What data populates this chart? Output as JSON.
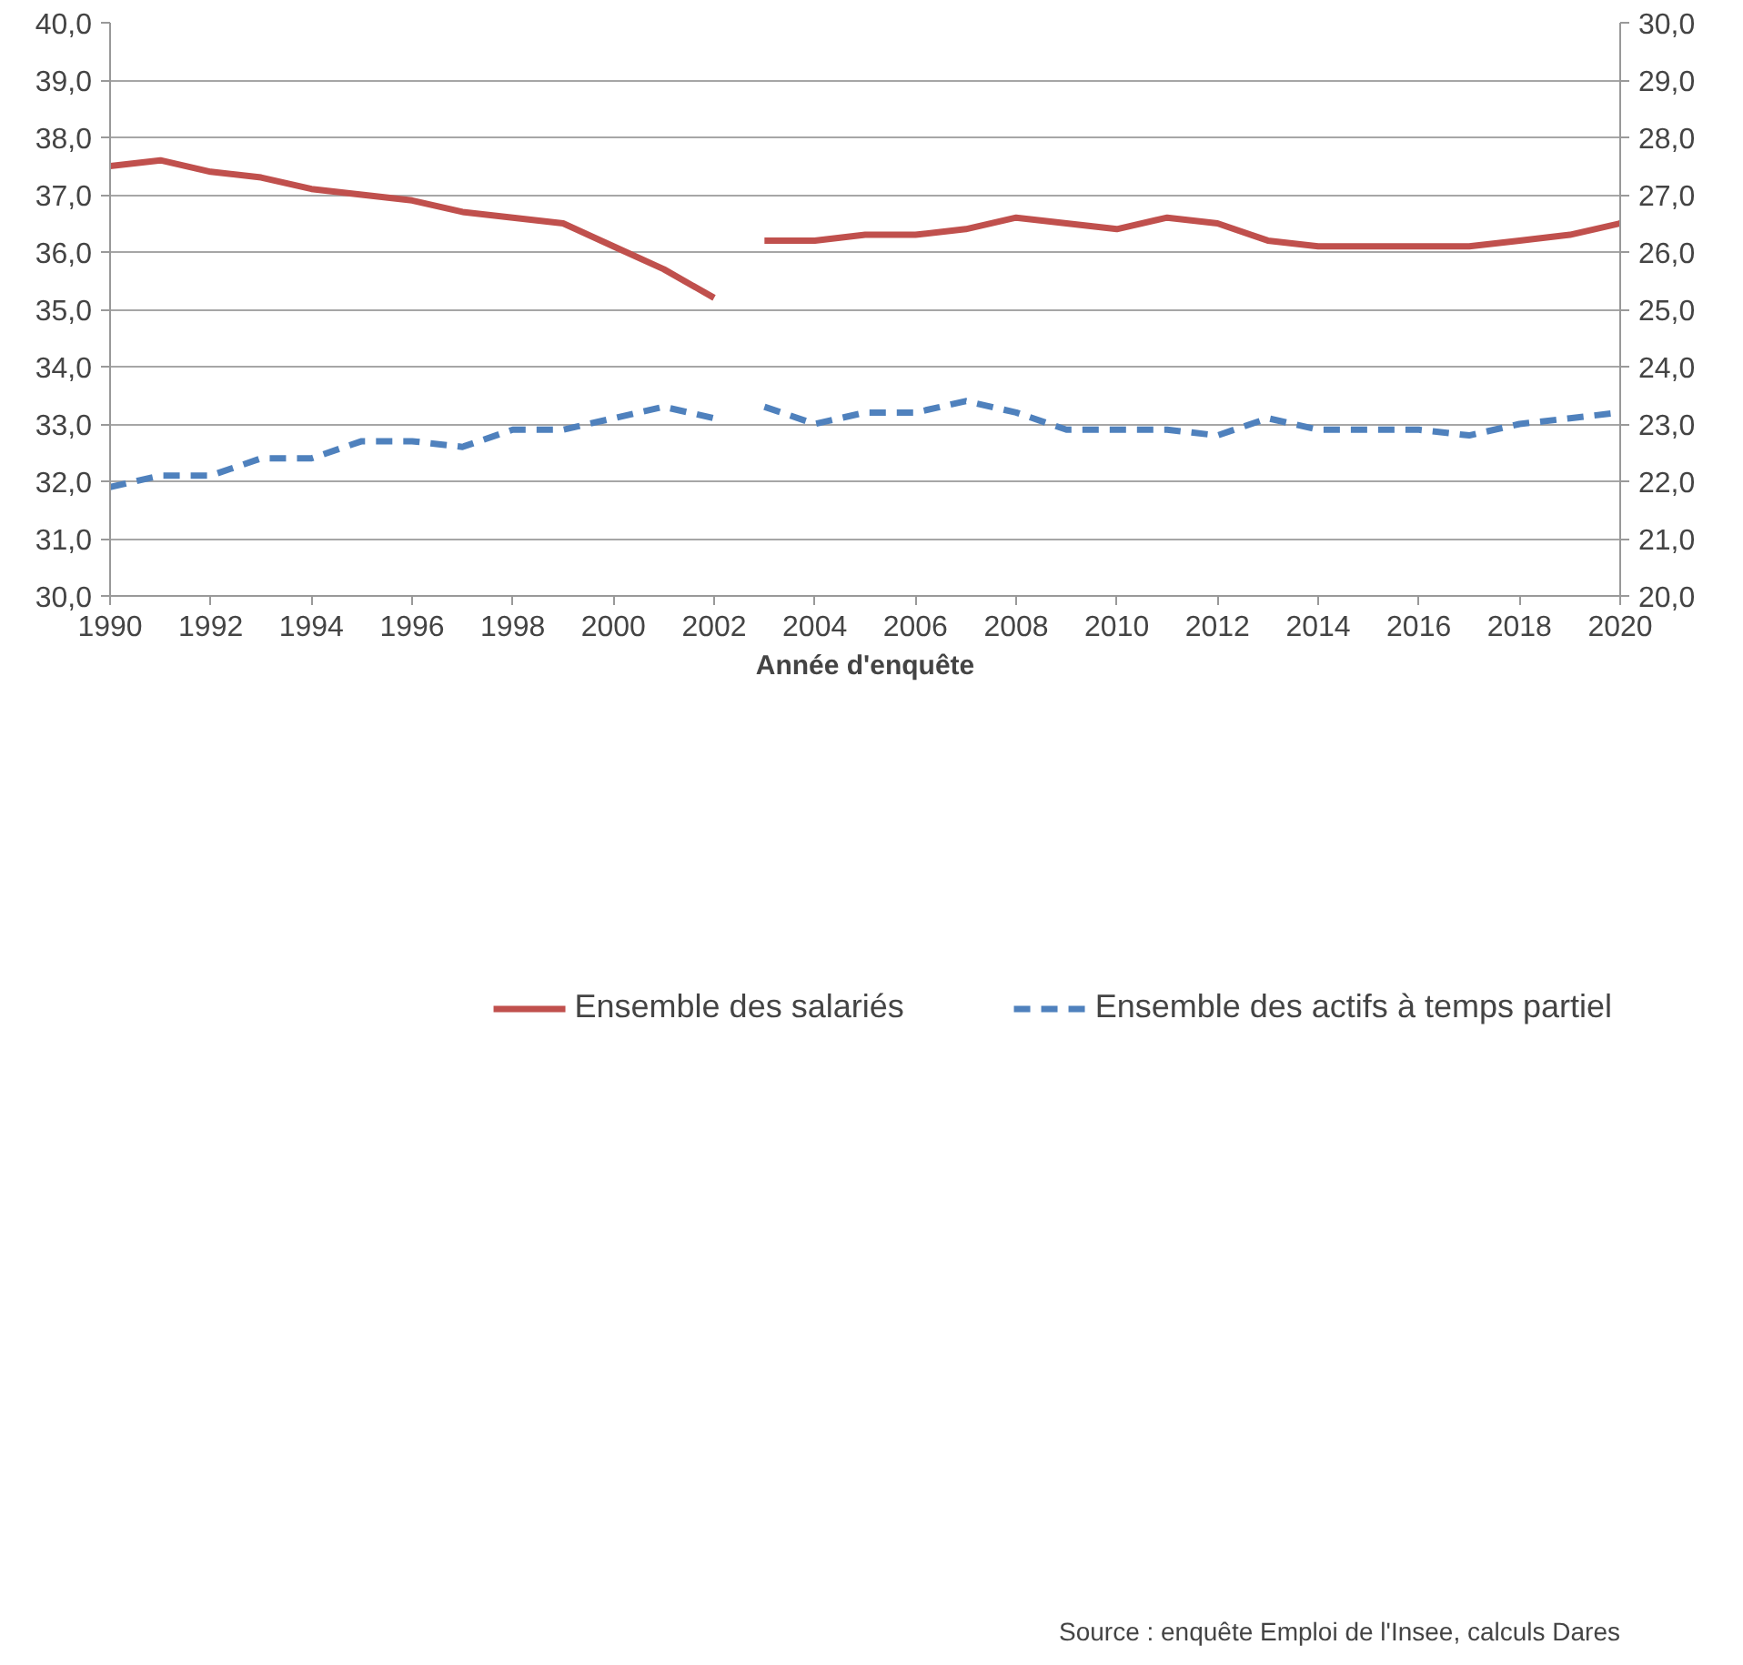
{
  "chart_data": {
    "type": "line",
    "xlabel": "Année d'enquête",
    "series": [
      {
        "name": "Ensemble des salariés",
        "color": "#c0504d",
        "line_style": "solid",
        "x": [
          1990,
          1991,
          1992,
          1993,
          1994,
          1995,
          1996,
          1997,
          1998,
          1999,
          2000,
          2001,
          2002
        ],
        "values": [
          37.5,
          37.6,
          37.4,
          37.3,
          37.1,
          37.0,
          36.9,
          36.7,
          36.6,
          36.5,
          36.1,
          35.7,
          35.2
        ]
      },
      {
        "color": "#c0504d",
        "line_style": "solid",
        "x": [
          2003,
          2004,
          2005,
          2006,
          2007,
          2008,
          2009,
          2010,
          2011,
          2012,
          2013,
          2014,
          2015,
          2016,
          2017,
          2018,
          2019,
          2020
        ],
        "values": [
          36.2,
          36.2,
          36.3,
          36.3,
          36.4,
          36.6,
          36.5,
          36.4,
          36.6,
          36.5,
          36.2,
          36.1,
          36.1,
          36.1,
          36.1,
          36.2,
          36.3,
          36.5
        ]
      },
      {
        "name": "Ensemble des actifs à temps partiel",
        "color": "#4f81bd",
        "line_style": "dashed",
        "axis": "y2",
        "x": [
          1990,
          1991,
          1992,
          1993,
          1994,
          1995,
          1996,
          1997,
          1998,
          1999,
          2000,
          2001,
          2002
        ],
        "values": [
          21.9,
          22.1,
          22.1,
          22.4,
          22.4,
          22.7,
          22.7,
          22.6,
          22.9,
          22.9,
          23.1,
          23.3,
          23.1
        ]
      },
      {
        "color": "#4f81bd",
        "line_style": "dashed",
        "axis": "y2",
        "x": [
          2003,
          2004,
          2005,
          2006,
          2007,
          2008,
          2009,
          2010,
          2011,
          2012,
          2013,
          2014,
          2015,
          2016,
          2017,
          2018,
          2019,
          2020
        ],
        "values": [
          23.3,
          23.0,
          23.2,
          23.2,
          23.4,
          23.2,
          22.9,
          22.9,
          22.9,
          22.8,
          23.1,
          22.9,
          22.9,
          22.9,
          22.8,
          23.0,
          23.1,
          23.2
        ]
      }
    ],
    "xlim": [
      1990,
      2020
    ],
    "xticks": [
      1990,
      1992,
      1994,
      1996,
      1998,
      2000,
      2002,
      2004,
      2006,
      2008,
      2010,
      2012,
      2014,
      2016,
      2018,
      2020
    ],
    "ylim": [
      30,
      40
    ],
    "yticks": [
      {
        "value": 30,
        "label": "30,0"
      },
      {
        "value": 31,
        "label": "31,0"
      },
      {
        "value": 32,
        "label": "32,0"
      },
      {
        "value": 33,
        "label": "33,0"
      },
      {
        "value": 34,
        "label": "34,0"
      },
      {
        "value": 35,
        "label": "35,0"
      },
      {
        "value": 36,
        "label": "36,0"
      },
      {
        "value": 37,
        "label": "37,0"
      },
      {
        "value": 38,
        "label": "38,0"
      },
      {
        "value": 39,
        "label": "39,0"
      },
      {
        "value": 40,
        "label": "40,0"
      }
    ],
    "y2lim": [
      20,
      30
    ],
    "y2ticks": [
      {
        "value": 20,
        "label": "20,0"
      },
      {
        "value": 21,
        "label": "21,0"
      },
      {
        "value": 22,
        "label": "22,0"
      },
      {
        "value": 23,
        "label": "23,0"
      },
      {
        "value": 24,
        "label": "24,0"
      },
      {
        "value": 25,
        "label": "25,0"
      },
      {
        "value": 26,
        "label": "26,0"
      },
      {
        "value": 27,
        "label": "27,0"
      },
      {
        "value": 28,
        "label": "28,0"
      },
      {
        "value": 29,
        "label": "29,0"
      },
      {
        "value": 30,
        "label": "30,0"
      }
    ],
    "grid": "y",
    "legend": "bottom",
    "marker": "none",
    "annotations": [
      "Source : enquête Emploi de l'Insee, calculs Dares"
    ]
  }
}
